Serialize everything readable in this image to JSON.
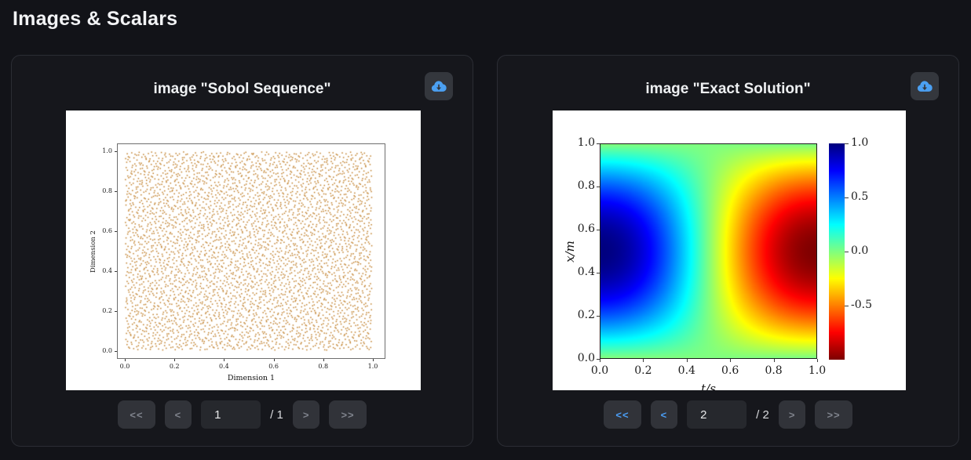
{
  "page": {
    "title": "Images & Scalars"
  },
  "colors": {
    "accent_blue": "#4b9ef5",
    "disabled_gray": "#7f838c",
    "scatter_dot": "#bf7d26",
    "page_background": "#121318",
    "card_background": "#16171c"
  },
  "cards": [
    {
      "title": "image \"Sobol Sequence\"",
      "download_icon": "cloud-download",
      "pager": {
        "first": "<<",
        "prev": "<",
        "next": ">",
        "last": ">>",
        "page": "1",
        "total": "/ 1",
        "first_enabled": false,
        "prev_enabled": false,
        "next_enabled": false,
        "last_enabled": false
      }
    },
    {
      "title": "image \"Exact Solution\"",
      "download_icon": "cloud-download",
      "pager": {
        "first": "<<",
        "prev": "<",
        "next": ">",
        "last": ">>",
        "page": "2",
        "total": "/ 2",
        "first_enabled": true,
        "prev_enabled": true,
        "next_enabled": false,
        "last_enabled": false
      }
    }
  ],
  "chart_data": [
    {
      "type": "scatter",
      "title": "",
      "xlabel": "Dimension 1",
      "ylabel": "Dimension 2",
      "xlim": [
        0.0,
        1.0
      ],
      "ylim": [
        0.0,
        1.0
      ],
      "xticks": [
        "0.0",
        "0.2",
        "0.4",
        "0.6",
        "0.8",
        "1.0"
      ],
      "yticks": [
        "0.0",
        "0.2",
        "0.4",
        "0.6",
        "0.8",
        "1.0"
      ],
      "marker_color": "#bf7d26",
      "n_points": 4000,
      "distribution": "sobol-low-discrepancy-unit-square"
    },
    {
      "type": "heatmap",
      "title": "",
      "xlabel": "t/s",
      "ylabel": "x/m",
      "xlim": [
        0.0,
        1.0
      ],
      "ylim": [
        0.0,
        1.0
      ],
      "xticks": [
        "0.0",
        "0.2",
        "0.4",
        "0.6",
        "0.8",
        "1.0"
      ],
      "yticks": [
        "0.0",
        "0.2",
        "0.4",
        "0.6",
        "0.8",
        "1.0"
      ],
      "colormap": "jet-reversed",
      "value_range": [
        -1.0,
        1.0
      ],
      "function": "u(x,t) = sin(pi*x)*cos(pi*t)",
      "colorbar_ticks": [
        "1.0",
        "0.5",
        "0.0",
        "-0.5"
      ],
      "colorbar_tick_values": [
        1.0,
        0.5,
        0.0,
        -0.5
      ],
      "legend_position": "right-colorbar"
    }
  ]
}
